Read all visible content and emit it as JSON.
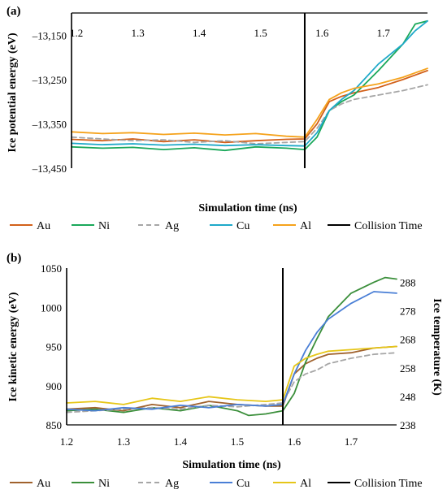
{
  "chart_data": [
    {
      "panel": "(a)",
      "type": "line",
      "xlabel": "Simulation time (ns)",
      "ylabel": "Ice potential energy (eV)",
      "xlim": [
        1.2,
        1.78
      ],
      "ylim": [
        -13450,
        -13100
      ],
      "xticks": [
        "1.2",
        "1.3",
        "1.4",
        "1.5",
        "1.6",
        "1.7"
      ],
      "yticks": [
        "–13,150",
        "–13,250",
        "–13,350",
        "–13,450"
      ],
      "ytick_values": [
        -13150,
        -13250,
        -13350,
        -13450
      ],
      "collision_time": 1.58,
      "legend_position": "bottom",
      "legend": [
        "Au",
        "Ni",
        "Ag",
        "Cu",
        "Al",
        "Collision Time"
      ],
      "series": [
        {
          "name": "Au",
          "color": "#d2601a",
          "dash": "none",
          "x": [
            1.2,
            1.25,
            1.3,
            1.35,
            1.4,
            1.45,
            1.5,
            1.55,
            1.58,
            1.6,
            1.62,
            1.64,
            1.66,
            1.7,
            1.74,
            1.78
          ],
          "y": [
            -13385,
            -13388,
            -13384,
            -13390,
            -13386,
            -13392,
            -13388,
            -13385,
            -13384,
            -13350,
            -13300,
            -13288,
            -13280,
            -13268,
            -13250,
            -13230
          ]
        },
        {
          "name": "Ni",
          "color": "#1aa85a",
          "dash": "none",
          "x": [
            1.2,
            1.25,
            1.3,
            1.35,
            1.4,
            1.45,
            1.5,
            1.55,
            1.58,
            1.6,
            1.62,
            1.64,
            1.66,
            1.7,
            1.74,
            1.76,
            1.78
          ],
          "y": [
            -13402,
            -13405,
            -13403,
            -13408,
            -13404,
            -13410,
            -13402,
            -13405,
            -13408,
            -13380,
            -13320,
            -13300,
            -13285,
            -13230,
            -13170,
            -13125,
            -13118
          ]
        },
        {
          "name": "Ag",
          "color": "#a6a6a6",
          "dash": "6,4",
          "x": [
            1.2,
            1.25,
            1.3,
            1.35,
            1.4,
            1.45,
            1.5,
            1.55,
            1.58,
            1.6,
            1.62,
            1.64,
            1.66,
            1.7,
            1.74,
            1.78
          ],
          "y": [
            -13380,
            -13384,
            -13388,
            -13386,
            -13392,
            -13388,
            -13395,
            -13392,
            -13390,
            -13360,
            -13320,
            -13305,
            -13295,
            -13285,
            -13275,
            -13262
          ]
        },
        {
          "name": "Cu",
          "color": "#1fa9c9",
          "dash": "none",
          "x": [
            1.2,
            1.25,
            1.3,
            1.35,
            1.4,
            1.45,
            1.5,
            1.55,
            1.58,
            1.6,
            1.62,
            1.64,
            1.66,
            1.7,
            1.74,
            1.76,
            1.78
          ],
          "y": [
            -13394,
            -13397,
            -13395,
            -13398,
            -13396,
            -13399,
            -13397,
            -13399,
            -13400,
            -13370,
            -13320,
            -13295,
            -13275,
            -13215,
            -13170,
            -13140,
            -13118
          ]
        },
        {
          "name": "Al",
          "color": "#f5a21b",
          "dash": "none",
          "x": [
            1.2,
            1.25,
            1.3,
            1.35,
            1.4,
            1.45,
            1.5,
            1.55,
            1.58,
            1.6,
            1.62,
            1.64,
            1.66,
            1.7,
            1.74,
            1.78
          ],
          "y": [
            -13368,
            -13372,
            -13370,
            -13374,
            -13371,
            -13375,
            -13372,
            -13378,
            -13380,
            -13340,
            -13295,
            -13280,
            -13270,
            -13260,
            -13245,
            -13225
          ]
        }
      ]
    },
    {
      "panel": "(b)",
      "type": "line",
      "xlabel": "Simulation time (ns)",
      "ylabel": "Ice kinetic energy (eV)",
      "y2label": "Ice temperature (K)",
      "xlim": [
        1.2,
        1.78
      ],
      "ylim": [
        850,
        1050
      ],
      "y2lim": [
        238,
        293
      ],
      "xticks": [
        "1.2",
        "1.3",
        "1.4",
        "1.5",
        "1.6",
        "1.7"
      ],
      "yticks": [
        "850",
        "900",
        "950",
        "1000",
        "1050"
      ],
      "y2ticks": [
        "238",
        "248",
        "258",
        "268",
        "278",
        "288"
      ],
      "collision_time": 1.58,
      "legend_position": "bottom",
      "legend": [
        "Au",
        "Ni",
        "Ag",
        "Cu",
        "Al",
        "Collision Time"
      ],
      "series": [
        {
          "name": "Au",
          "color": "#a0622d",
          "dash": "none",
          "x": [
            1.2,
            1.25,
            1.3,
            1.35,
            1.4,
            1.45,
            1.5,
            1.55,
            1.58,
            1.6,
            1.62,
            1.64,
            1.66,
            1.7,
            1.74,
            1.78
          ],
          "y": [
            870,
            872,
            868,
            876,
            872,
            880,
            876,
            874,
            874,
            915,
            928,
            935,
            940,
            942,
            948,
            950
          ]
        },
        {
          "name": "Ni",
          "color": "#3b8f3b",
          "dash": "none",
          "x": [
            1.2,
            1.25,
            1.3,
            1.35,
            1.4,
            1.45,
            1.5,
            1.52,
            1.55,
            1.58,
            1.6,
            1.62,
            1.64,
            1.66,
            1.7,
            1.74,
            1.76,
            1.78
          ],
          "y": [
            868,
            870,
            866,
            872,
            868,
            875,
            868,
            862,
            864,
            868,
            890,
            930,
            960,
            988,
            1018,
            1032,
            1038,
            1036
          ]
        },
        {
          "name": "Ag",
          "color": "#a6a6a6",
          "dash": "6,4",
          "x": [
            1.2,
            1.25,
            1.3,
            1.35,
            1.4,
            1.45,
            1.5,
            1.55,
            1.58,
            1.6,
            1.62,
            1.64,
            1.66,
            1.7,
            1.74,
            1.78
          ],
          "y": [
            866,
            868,
            870,
            872,
            870,
            875,
            873,
            876,
            878,
            905,
            915,
            920,
            928,
            935,
            940,
            942
          ]
        },
        {
          "name": "Cu",
          "color": "#4a7fd6",
          "dash": "none",
          "x": [
            1.2,
            1.25,
            1.3,
            1.35,
            1.4,
            1.45,
            1.5,
            1.55,
            1.58,
            1.6,
            1.62,
            1.64,
            1.66,
            1.7,
            1.74,
            1.78
          ],
          "y": [
            870,
            868,
            872,
            870,
            875,
            872,
            876,
            874,
            876,
            915,
            945,
            968,
            985,
            1005,
            1020,
            1018
          ]
        },
        {
          "name": "Al",
          "color": "#e6c619",
          "dash": "none",
          "x": [
            1.2,
            1.25,
            1.3,
            1.35,
            1.4,
            1.45,
            1.5,
            1.55,
            1.58,
            1.6,
            1.62,
            1.64,
            1.66,
            1.7,
            1.74,
            1.78
          ],
          "y": [
            878,
            880,
            876,
            884,
            880,
            886,
            882,
            880,
            882,
            925,
            935,
            940,
            944,
            946,
            948,
            950
          ]
        }
      ]
    }
  ]
}
